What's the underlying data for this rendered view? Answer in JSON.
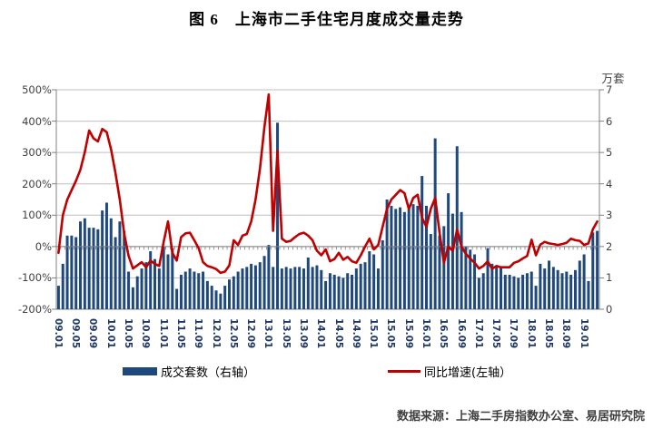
{
  "title": "图 6　上海市二手住宅月度成交量走势",
  "right_axis_unit": "万套",
  "source_note": "数据来源：上海二手房指数办公室、易居研究院",
  "legend": {
    "bar_label": "成交套数（右轴）",
    "line_label": "同比增速(左轴）"
  },
  "colors": {
    "bar": "#1F497D",
    "line": "#C00000",
    "grid": "#BFBFBF",
    "axis": "#808080",
    "axis_text": "#404040",
    "x_tick_text": "#1F3864"
  },
  "chart_data": {
    "type": "bar+line",
    "categories": [
      "09.01",
      "09.02",
      "09.03",
      "09.04",
      "09.05",
      "09.06",
      "09.07",
      "09.08",
      "09.09",
      "09.10",
      "09.11",
      "09.12",
      "10.01",
      "10.02",
      "10.03",
      "10.04",
      "10.05",
      "10.06",
      "10.07",
      "10.08",
      "10.09",
      "10.10",
      "10.11",
      "10.12",
      "11.01",
      "11.02",
      "11.03",
      "11.04",
      "11.05",
      "11.06",
      "11.07",
      "11.08",
      "11.09",
      "11.10",
      "11.11",
      "11.12",
      "12.01",
      "12.02",
      "12.03",
      "12.04",
      "12.05",
      "12.06",
      "12.07",
      "12.08",
      "12.09",
      "12.10",
      "12.11",
      "12.12",
      "13.01",
      "13.02",
      "13.03",
      "13.04",
      "13.05",
      "13.06",
      "13.07",
      "13.08",
      "13.09",
      "13.10",
      "13.11",
      "13.12",
      "14.01",
      "14.02",
      "14.03",
      "14.04",
      "14.05",
      "14.06",
      "14.07",
      "14.08",
      "14.09",
      "14.10",
      "14.11",
      "14.12",
      "15.01",
      "15.02",
      "15.03",
      "15.04",
      "15.05",
      "15.06",
      "15.07",
      "15.08",
      "15.09",
      "15.10",
      "15.11",
      "15.12",
      "16.01",
      "16.02",
      "16.03",
      "16.04",
      "16.05",
      "16.06",
      "16.07",
      "16.08",
      "16.09",
      "16.10",
      "16.11",
      "16.12",
      "17.01",
      "17.02",
      "17.03",
      "17.04",
      "17.05",
      "17.06",
      "17.07",
      "17.08",
      "17.09",
      "17.10",
      "17.11",
      "17.12",
      "18.01",
      "18.02",
      "18.03",
      "18.04",
      "18.05",
      "18.06",
      "18.07",
      "18.08",
      "18.09",
      "18.10",
      "18.11",
      "18.12",
      "19.01",
      "19.02",
      "19.03",
      "19.04"
    ],
    "x_axis_tick_labels": [
      "09.01",
      "09.05",
      "09.09",
      "10.01",
      "10.05",
      "10.09",
      "11.01",
      "11.05",
      "11.09",
      "12.01",
      "12.05",
      "12.09",
      "13.01",
      "13.05",
      "13.09",
      "14.01",
      "14.05",
      "14.09",
      "15.01",
      "15.05",
      "15.09",
      "16.01",
      "16.05",
      "16.09",
      "17.01",
      "17.05",
      "17.09",
      "18.01",
      "18.05",
      "18.09",
      "19.01"
    ],
    "left_axis": {
      "min": -200,
      "max": 500,
      "step": 100,
      "unit": "%",
      "tick_labels": [
        "500%",
        "400%",
        "300%",
        "200%",
        "100%",
        "0%",
        "-100%",
        "-200%"
      ]
    },
    "right_axis": {
      "min": 0,
      "max": 7,
      "step": 1,
      "unit": "万套",
      "tick_labels": [
        "7",
        "6",
        "5",
        "4",
        "3",
        "2",
        "1",
        "0"
      ]
    },
    "series": [
      {
        "name": "成交套数（右轴）",
        "type": "bar",
        "axis": "right",
        "unit": "万套",
        "values": [
          0.75,
          1.45,
          2.35,
          2.35,
          2.3,
          2.8,
          2.9,
          2.6,
          2.6,
          2.55,
          3.15,
          3.4,
          2.9,
          2.3,
          2.8,
          2.5,
          1.2,
          0.7,
          1.05,
          1.3,
          1.5,
          1.85,
          1.6,
          1.3,
          2.0,
          1.75,
          1.95,
          0.65,
          1.1,
          1.2,
          1.3,
          1.2,
          1.15,
          1.2,
          0.9,
          0.75,
          0.6,
          0.5,
          0.75,
          0.95,
          1.05,
          1.2,
          1.3,
          1.35,
          1.45,
          1.4,
          1.5,
          1.7,
          2.05,
          1.35,
          5.95,
          1.3,
          1.35,
          1.3,
          1.35,
          1.35,
          1.3,
          1.65,
          1.35,
          1.4,
          1.25,
          0.9,
          1.15,
          1.1,
          1.05,
          1.0,
          1.15,
          1.1,
          1.3,
          1.45,
          1.5,
          1.85,
          1.75,
          1.3,
          2.2,
          3.5,
          3.3,
          3.2,
          3.25,
          3.1,
          3.2,
          3.35,
          3.3,
          4.25,
          3.3,
          2.4,
          5.45,
          2.35,
          2.65,
          3.7,
          3.05,
          5.2,
          3.1,
          2.0,
          1.9,
          1.75,
          1.0,
          1.15,
          1.95,
          1.45,
          1.4,
          1.35,
          1.1,
          1.1,
          1.05,
          1.0,
          1.1,
          1.15,
          1.2,
          0.75,
          1.45,
          1.3,
          1.55,
          1.35,
          1.25,
          1.15,
          1.2,
          1.1,
          1.25,
          1.55,
          1.75,
          0.9,
          2.45,
          2.5
        ]
      },
      {
        "name": "同比增速(左轴）",
        "type": "line",
        "axis": "left",
        "unit": "%",
        "values": [
          -20,
          100,
          150,
          180,
          210,
          245,
          300,
          370,
          345,
          335,
          375,
          365,
          310,
          235,
          150,
          40,
          -30,
          -70,
          -60,
          -50,
          -66,
          -45,
          -55,
          -62,
          15,
          80,
          -20,
          -45,
          30,
          42,
          44,
          20,
          -5,
          -50,
          -62,
          -66,
          -72,
          -84,
          -80,
          -60,
          20,
          5,
          35,
          40,
          80,
          150,
          250,
          380,
          485,
          50,
          305,
          25,
          15,
          18,
          30,
          40,
          44,
          35,
          20,
          -13,
          -28,
          -9,
          -47,
          -40,
          -20,
          -42,
          -33,
          -47,
          -52,
          -28,
          0,
          25,
          -9,
          5,
          63,
          120,
          150,
          165,
          180,
          170,
          120,
          155,
          165,
          92,
          63,
          120,
          155,
          44,
          -52,
          0,
          -13,
          54,
          0,
          -23,
          -38,
          -52,
          -70,
          -62,
          -47,
          -71,
          -62,
          -66,
          -66,
          -66,
          -52,
          -47,
          -38,
          -30,
          22,
          -28,
          6,
          15,
          10,
          8,
          5,
          8,
          12,
          25,
          20,
          18,
          5,
          10,
          55,
          80
        ]
      }
    ]
  }
}
